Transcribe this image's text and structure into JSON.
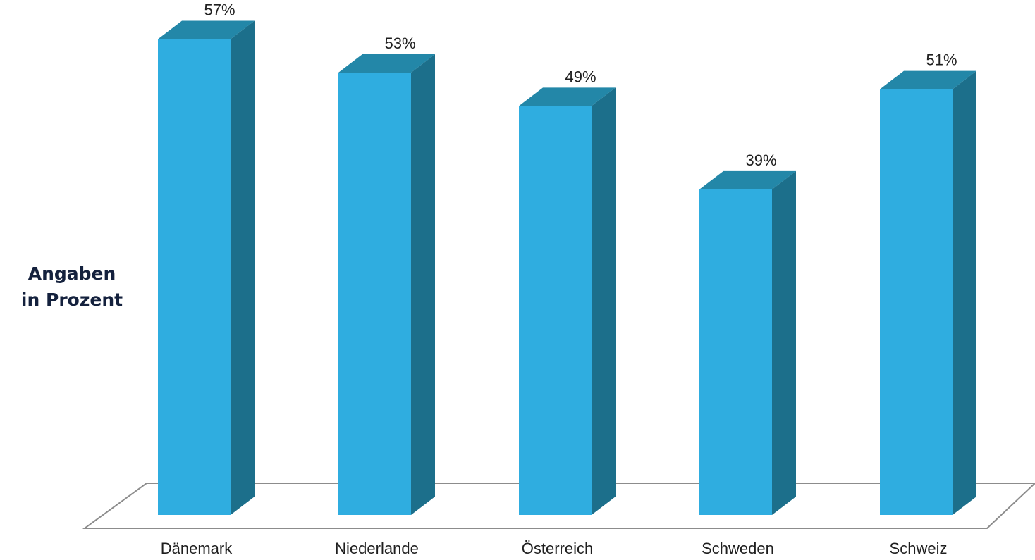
{
  "chart_data": {
    "type": "bar",
    "style": "3d-column",
    "categories": [
      "Dänemark",
      "Niederlande",
      "Österreich",
      "Schweden",
      "Schweiz"
    ],
    "values": [
      57,
      53,
      49,
      39,
      51
    ],
    "value_labels": [
      "57%",
      "53%",
      "49%",
      "39%",
      "51%"
    ],
    "unit": "%",
    "ylabel_lines": [
      "Angaben",
      "in Prozent"
    ],
    "ylim": [
      0,
      60
    ],
    "grid": false,
    "legend": "none",
    "colors": {
      "front": "#2fade0",
      "side": "#1c6f8b",
      "top": "#2387a8",
      "floor": "#8c8c8c"
    }
  }
}
